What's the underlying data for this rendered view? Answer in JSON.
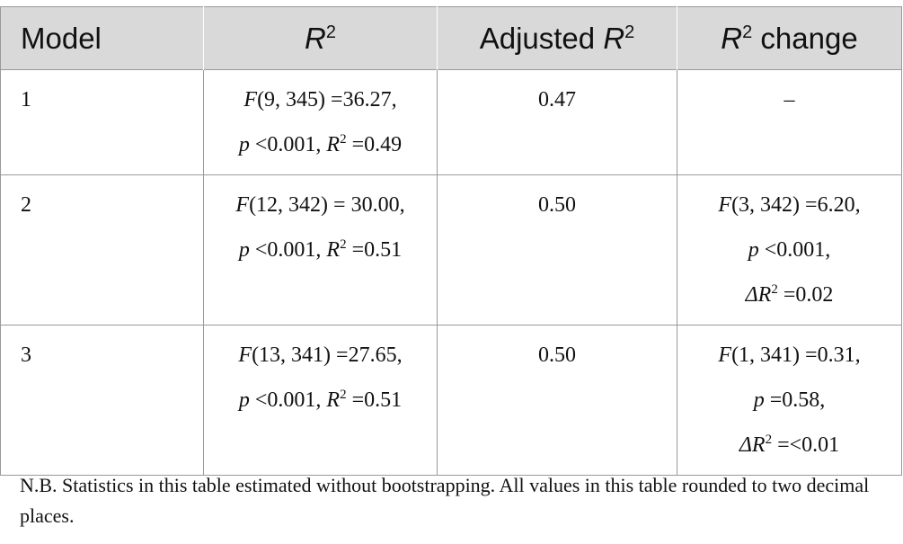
{
  "table": {
    "headers": {
      "model": "Model",
      "r2_symbol": "R",
      "r2_sup": "2",
      "adjusted_prefix": "Adjusted ",
      "adjusted_symbol": "R",
      "adjusted_sup": "2",
      "change_symbol": "R",
      "change_sup": "2",
      "change_suffix": " change"
    },
    "rows": [
      {
        "model": "1",
        "r2_line1": "F(9, 345) =36.27,",
        "r2_line2": "p <0.001, R2 =0.49",
        "adjusted": "0.47",
        "change_line1": "–",
        "change_line2": "",
        "change_line3": ""
      },
      {
        "model": "2",
        "r2_line1": "F(12, 342) = 30.00,",
        "r2_line2": "p <0.001, R2 =0.51",
        "adjusted": "0.50",
        "change_line1": "F(3, 342) =6.20,",
        "change_line2": "p <0.001,",
        "change_line3": "ΔR2 =0.02"
      },
      {
        "model": "3",
        "r2_line1": "F(13, 341) =27.65,",
        "r2_line2": "p <0.001, R2 =0.51",
        "adjusted": "0.50",
        "change_line1": "F(1, 341) =0.31,",
        "change_line2": "p =0.58,",
        "change_line3": "ΔR2 =<0.01"
      }
    ]
  },
  "footnote": "N.B. Statistics in this table estimated without bootstrapping. All values in this table rounded to two decimal places.",
  "colors": {
    "header_bg": "#d9d9d9",
    "border": "#9a9a9a",
    "text": "#111111"
  }
}
